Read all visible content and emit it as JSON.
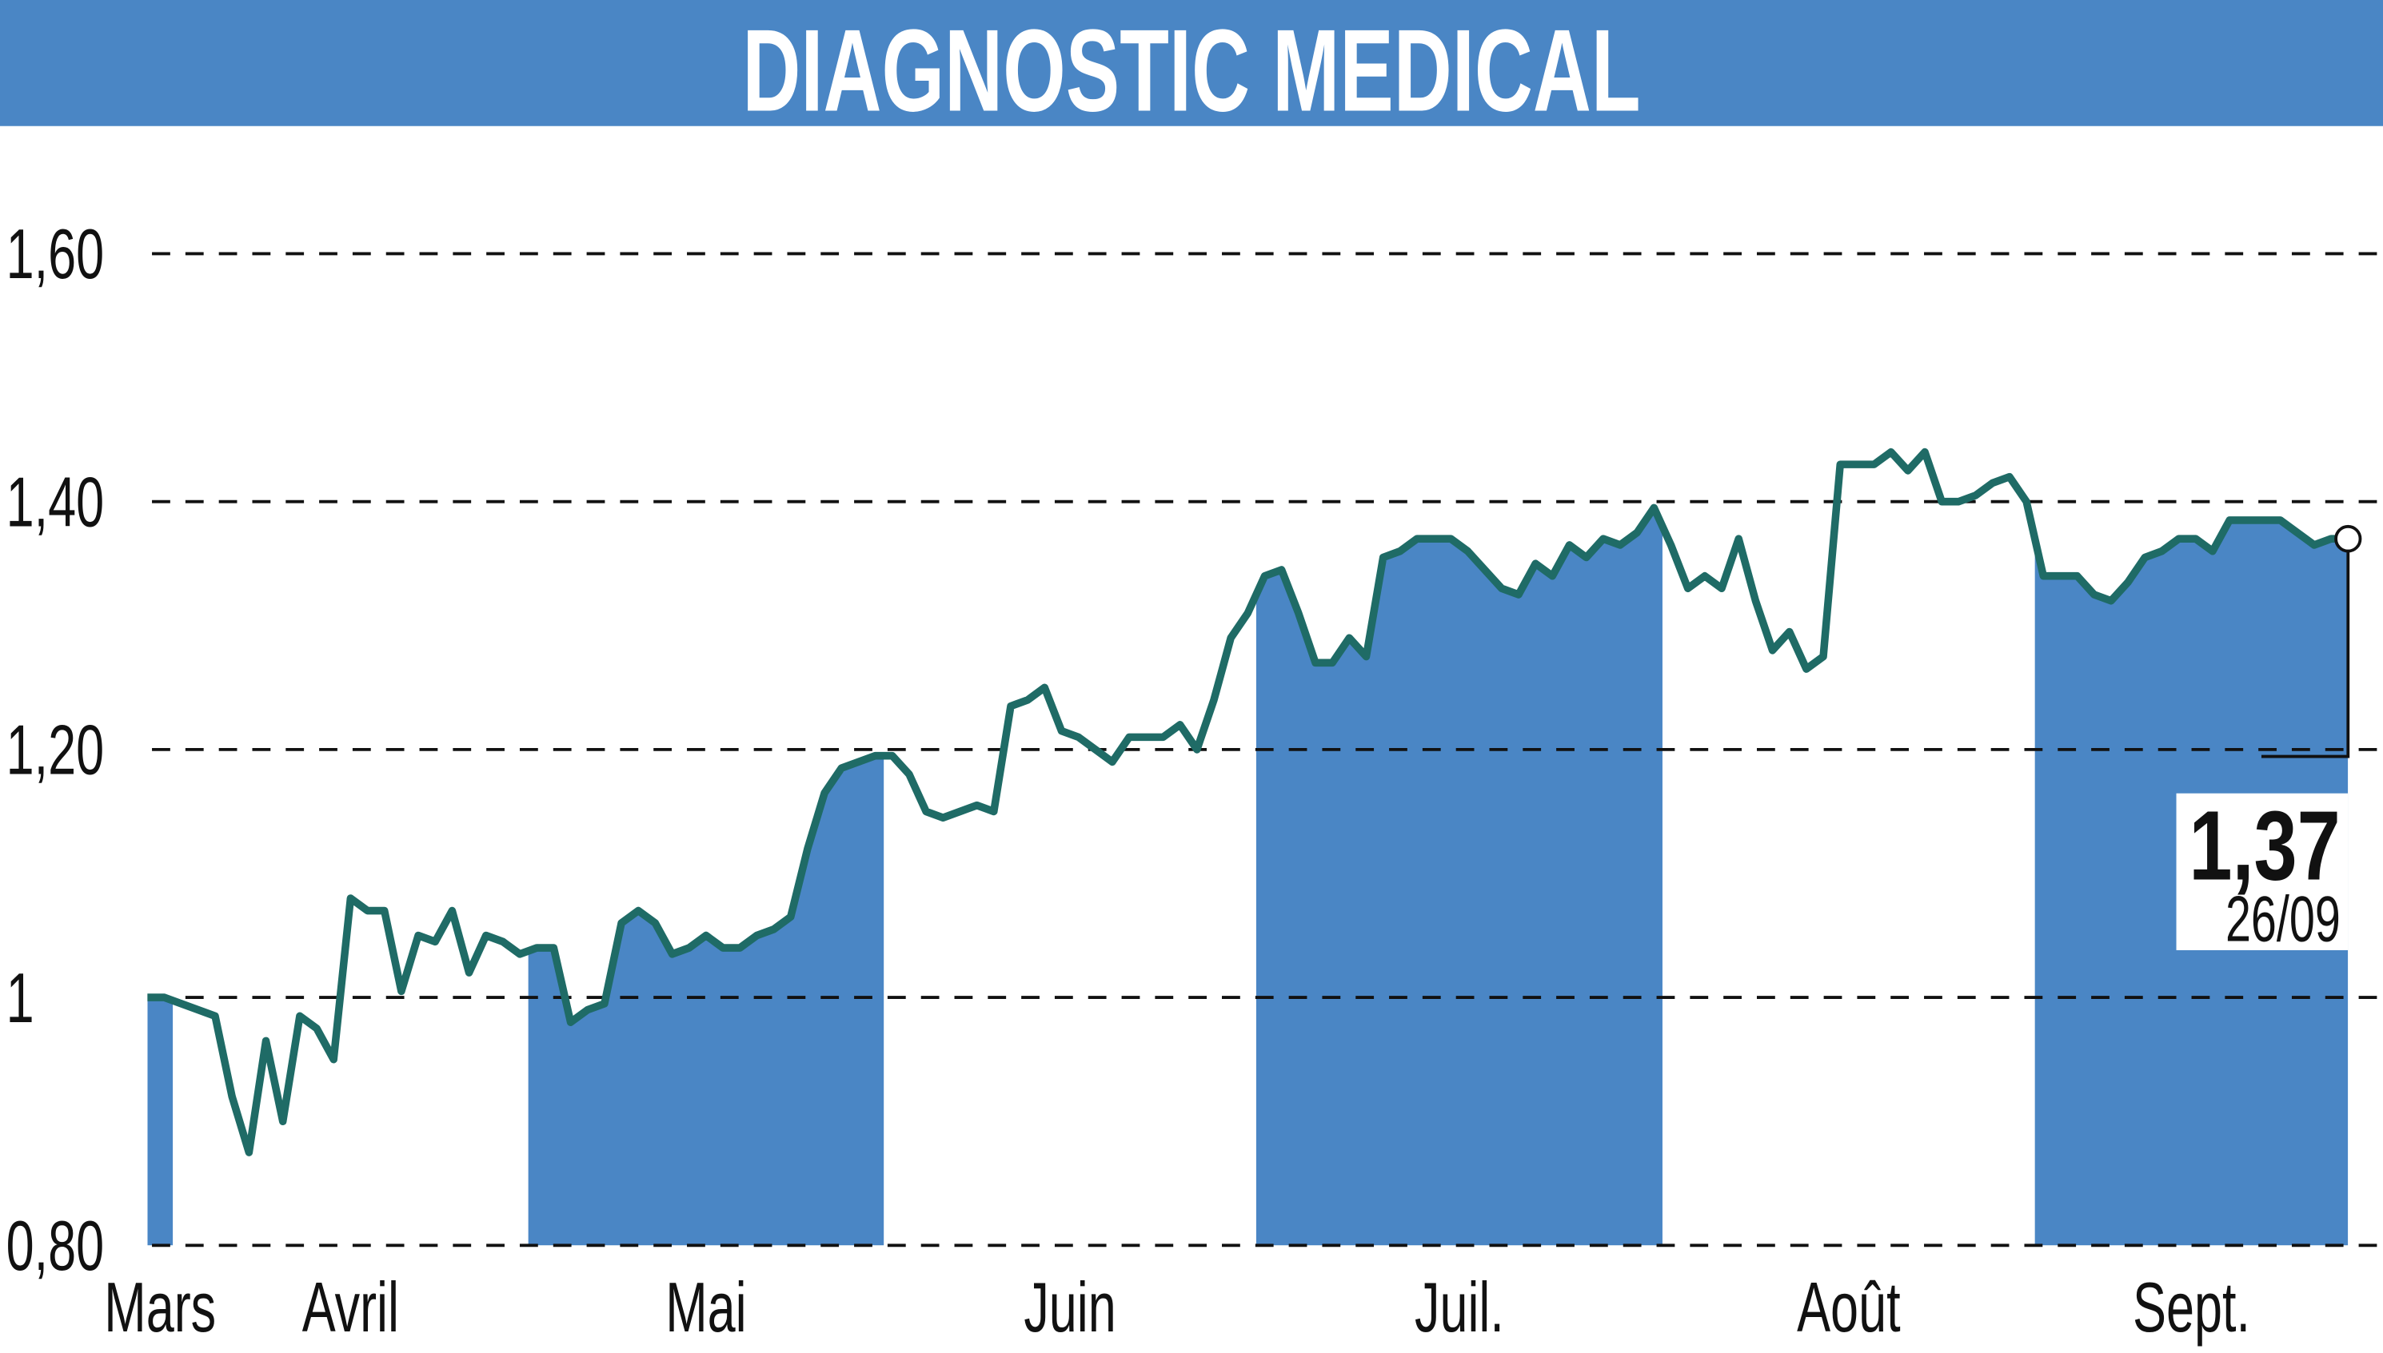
{
  "chart_data": {
    "type": "line",
    "title": "DIAGNOSTIC MEDICAL",
    "color": "#1f6b66",
    "shade_color": "#4a86c5",
    "title_bar_color": "#4a86c5",
    "grid": true,
    "ylim": [
      0.8,
      1.6
    ],
    "yticks": [
      {
        "value": 0.8,
        "label": "0,80"
      },
      1,
      {
        "value": 1.2,
        "label": "1,20"
      },
      {
        "value": 1.4,
        "label": "1,40"
      },
      {
        "value": 1.6,
        "label": "1,60"
      }
    ],
    "categories": [
      "Mars",
      null,
      "Avril",
      null,
      null,
      null,
      null,
      null,
      null,
      null,
      null,
      null,
      null,
      null,
      null,
      null,
      null,
      null,
      null,
      null,
      null,
      null,
      null,
      "Mai",
      null,
      null,
      null,
      null,
      null,
      null,
      null,
      null,
      null,
      null,
      null,
      null,
      null,
      null,
      null,
      null,
      null,
      null,
      null,
      null,
      "Juin",
      null,
      null,
      null,
      null,
      null,
      null,
      null,
      null,
      null,
      null,
      null,
      null,
      null,
      null,
      null,
      null,
      null,
      null,
      null,
      null,
      null,
      "Juil.",
      null,
      null,
      null,
      null,
      null,
      null,
      null,
      null,
      null,
      null,
      null,
      null,
      null,
      null,
      null,
      null,
      null,
      null,
      null,
      null,
      null,
      null,
      null,
      "Août",
      null,
      null,
      null,
      null,
      null,
      null,
      null,
      null,
      null,
      null,
      null,
      null,
      null,
      null,
      null,
      null,
      null,
      null,
      null,
      null,
      null,
      "Sept.",
      null,
      null,
      null,
      null,
      null,
      null,
      null,
      null,
      null,
      null,
      null,
      null,
      null,
      null,
      null,
      null,
      null,
      null
    ],
    "values": [
      1.0,
      1.0,
      0.995,
      0.99,
      0.985,
      0.92,
      0.875,
      0.965,
      0.9,
      0.985,
      0.975,
      0.95,
      1.08,
      1.07,
      1.07,
      1.005,
      1.05,
      1.045,
      1.07,
      1.02,
      1.05,
      1.045,
      1.035,
      1.04,
      1.04,
      0.98,
      0.99,
      0.995,
      1.06,
      1.07,
      1.06,
      1.035,
      1.04,
      1.05,
      1.04,
      1.04,
      1.05,
      1.055,
      1.065,
      1.12,
      1.165,
      1.185,
      1.19,
      1.195,
      1.195,
      1.18,
      1.15,
      1.145,
      1.15,
      1.155,
      1.15,
      1.235,
      1.24,
      1.25,
      1.215,
      1.21,
      1.2,
      1.19,
      1.21,
      1.21,
      1.21,
      1.22,
      1.2,
      1.24,
      1.29,
      1.31,
      1.34,
      1.345,
      1.31,
      1.27,
      1.27,
      1.29,
      1.275,
      1.355,
      1.36,
      1.37,
      1.37,
      1.37,
      1.36,
      1.345,
      1.33,
      1.325,
      1.35,
      1.34,
      1.365,
      1.355,
      1.37,
      1.365,
      1.375,
      1.395,
      1.365,
      1.33,
      1.34,
      1.33,
      1.37,
      1.32,
      1.28,
      1.295,
      1.265,
      1.275,
      1.43,
      1.43,
      1.43,
      1.44,
      1.425,
      1.44,
      1.4,
      1.4,
      1.405,
      1.415,
      1.42,
      1.4,
      1.34,
      1.34,
      1.34,
      1.325,
      1.32,
      1.335,
      1.355,
      1.36,
      1.37,
      1.37,
      1.36,
      1.385,
      1.385,
      1.385,
      1.385,
      1.375,
      1.365,
      1.37,
      1.37
    ],
    "value_labels": [
      null,
      null,
      null,
      null,
      null,
      null,
      null,
      null,
      null,
      null,
      null,
      null,
      null,
      null,
      null,
      null,
      null,
      null,
      null,
      null,
      null,
      null,
      null,
      null,
      null,
      null,
      null,
      null,
      null,
      null,
      null,
      null,
      null,
      null,
      null,
      null,
      null,
      null,
      null,
      null,
      null,
      null,
      null,
      null,
      null,
      null,
      null,
      null,
      null,
      null,
      null,
      null,
      null,
      null,
      null,
      null,
      null,
      null,
      null,
      null,
      null,
      null,
      null,
      null,
      null,
      null,
      null,
      null,
      null,
      null,
      null,
      null,
      null,
      null,
      null,
      null,
      null,
      null,
      null,
      null,
      null,
      null,
      null,
      null,
      null,
      null,
      null,
      null,
      null,
      null,
      null,
      null,
      null,
      null,
      null,
      null,
      null,
      null,
      null,
      null,
      null,
      null,
      null,
      null,
      null,
      null,
      null,
      null,
      null,
      null,
      null,
      null,
      null,
      null,
      null,
      null,
      null,
      null,
      null,
      null,
      null,
      null,
      null,
      null,
      null,
      null,
      null,
      null,
      null,
      null,
      "1,37"
    ],
    "last_date": "26/09"
  }
}
